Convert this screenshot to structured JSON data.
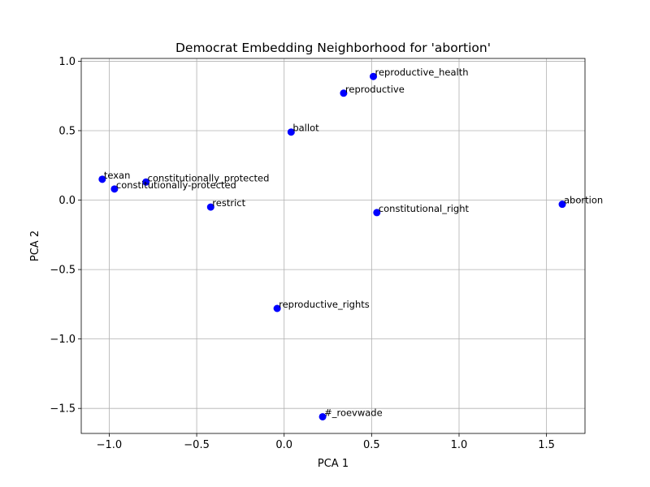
{
  "chart_data": {
    "type": "scatter",
    "title": "Democrat Embedding Neighborhood for 'abortion'",
    "xlabel": "PCA 1",
    "ylabel": "PCA 2",
    "xlim": [
      -1.16,
      1.72
    ],
    "ylim": [
      -1.68,
      1.02
    ],
    "xticks": [
      -1.0,
      -0.5,
      0.0,
      0.5,
      1.0,
      1.5
    ],
    "xtick_labels": [
      "−1.0",
      "−0.5",
      "0.0",
      "0.5",
      "1.0",
      "1.5"
    ],
    "yticks": [
      -1.5,
      -1.0,
      -0.5,
      0.0,
      0.5,
      1.0
    ],
    "ytick_labels": [
      "−1.5",
      "−1.0",
      "−0.5",
      "0.0",
      "0.5",
      "1.0"
    ],
    "grid": true,
    "marker_color": "#0000ff",
    "points": [
      {
        "label": "reproductive_health",
        "x": 0.51,
        "y": 0.89
      },
      {
        "label": "reproductive",
        "x": 0.34,
        "y": 0.77
      },
      {
        "label": "ballot",
        "x": 0.04,
        "y": 0.49
      },
      {
        "label": "texan",
        "x": -1.04,
        "y": 0.15
      },
      {
        "label": "constitutionally_protected",
        "x": -0.79,
        "y": 0.13
      },
      {
        "label": "constitutionally-protected",
        "x": -0.97,
        "y": 0.08
      },
      {
        "label": "restrict",
        "x": -0.42,
        "y": -0.05
      },
      {
        "label": "constitutional_right",
        "x": 0.53,
        "y": -0.09
      },
      {
        "label": "abortion",
        "x": 1.59,
        "y": -0.03
      },
      {
        "label": "reproductive_rights",
        "x": -0.04,
        "y": -0.78
      },
      {
        "label": "#_roevwade",
        "x": 0.22,
        "y": -1.56
      }
    ]
  }
}
